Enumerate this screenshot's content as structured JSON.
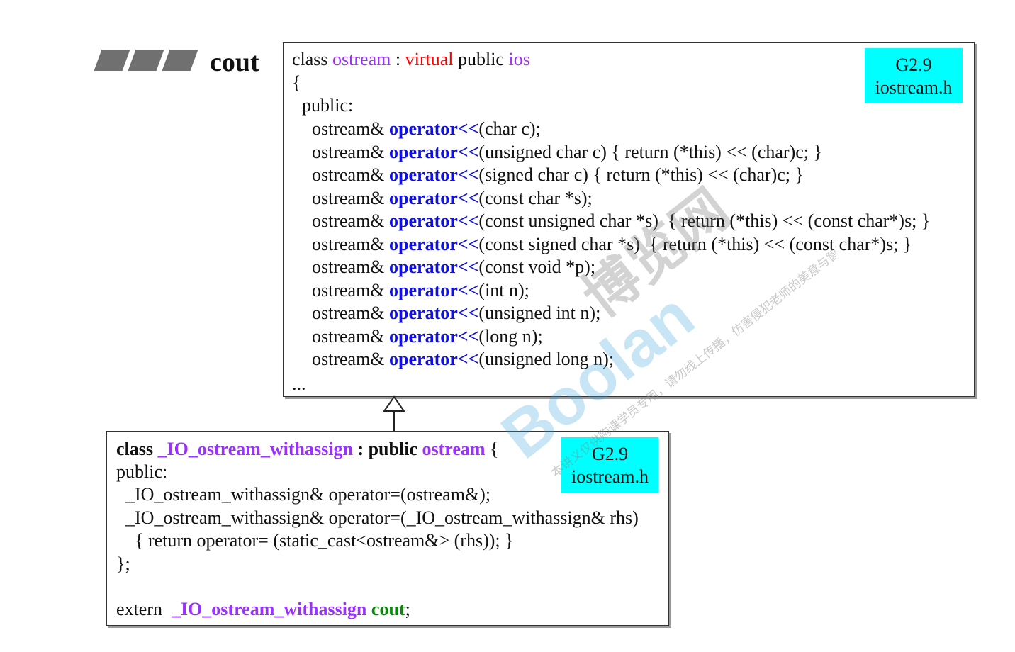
{
  "header": {
    "title": "cout"
  },
  "box1": {
    "badge": {
      "line1": "G2.9",
      "line2": "iostream.h"
    },
    "class_kw": "class ",
    "class_name": "ostream",
    "sep": " : ",
    "virtual_kw": "virtual",
    "public_kw": " public ",
    "base_name": "ios",
    "open_brace": "{",
    "public_label": "public:",
    "ret_type": "ostream& ",
    "op_name": "operator",
    "op_symbol": "<<",
    "methods": [
      "(char c);",
      "(unsigned char c) { return (*this) << (char)c; }",
      "(signed char c) { return (*this) << (char)c; }",
      "(const char *s);",
      "(const unsigned char *s)  { return (*this) << (const char*)s; }",
      "(const signed char *s)  { return (*this) << (const char*)s; }",
      "(const void *p);",
      "(int n);",
      "(unsigned int n);",
      "(long n);",
      "(unsigned long n);"
    ],
    "ellipsis": "..."
  },
  "box2": {
    "badge": {
      "line1": "G2.9",
      "line2": "iostream.h"
    },
    "class_kw": "class ",
    "class_name": "_IO_ostream_withassign",
    "public_sep": " : public ",
    "base_name": "ostream",
    "open_brace": " {",
    "public_label": "public:",
    "line3": "  _IO_ostream_withassign& operator=(ostream&);",
    "line4": "  _IO_ostream_withassign& operator=(_IO_ostream_withassign& rhs)",
    "line5": "    { return operator= (static_cast<ostream&> (rhs)); }",
    "close": "};",
    "extern_kw": "extern  ",
    "extern_type": "_IO_ostream_withassign",
    "extern_var": " cout",
    "semicolon": ";"
  },
  "watermark": {
    "brand": "Boolan",
    "cn_brand": "博览网",
    "notice": "本讲义仅供购课学员专用，请勿线上传播，仿害侵犯老师的美意与智慧权。"
  },
  "colors": {
    "badge_bg": "#00ffff",
    "keyword_blue": "#1010e0",
    "keyword_purple": "#9b30ff",
    "keyword_red": "#ff0000",
    "keyword_green": "#0a8a0a"
  }
}
